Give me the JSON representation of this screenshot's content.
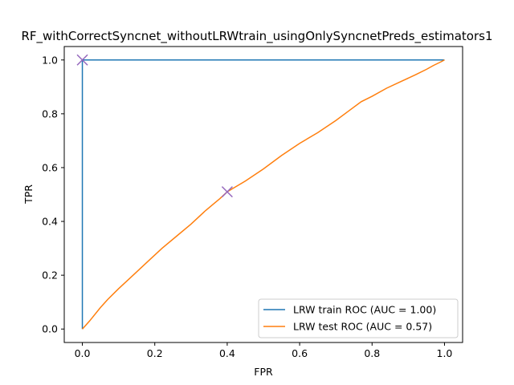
{
  "chart_data": {
    "type": "line",
    "title": "RF_withCorrectSyncnet_withoutLRWtrain_usingOnlySyncnetPreds_estimators1",
    "xlabel": "FPR",
    "ylabel": "TPR",
    "xlim": [
      -0.05,
      1.05
    ],
    "ylim": [
      -0.05,
      1.05
    ],
    "xticks": [
      "0.0",
      "0.2",
      "0.4",
      "0.6",
      "0.8",
      "1.0"
    ],
    "yticks": [
      "0.0",
      "0.2",
      "0.4",
      "0.6",
      "0.8",
      "1.0"
    ],
    "grid": false,
    "legend_position": "lower-right",
    "series": [
      {
        "name": "LRW train ROC (AUC = 1.00)",
        "color": "#1f77b4",
        "x": [
          0.0,
          0.0,
          1.0
        ],
        "y": [
          0.0,
          1.0,
          1.0
        ]
      },
      {
        "name": "LRW test ROC (AUC = 0.57)",
        "color": "#ff7f0e",
        "x": [
          0.0,
          0.02,
          0.05,
          0.07,
          0.1,
          0.14,
          0.18,
          0.22,
          0.26,
          0.3,
          0.34,
          0.38,
          0.4,
          0.45,
          0.5,
          0.55,
          0.6,
          0.65,
          0.7,
          0.74,
          0.77,
          0.8,
          0.84,
          0.88,
          0.92,
          0.95,
          0.97,
          0.99,
          1.0
        ],
        "y": [
          0.0,
          0.03,
          0.08,
          0.11,
          0.15,
          0.2,
          0.25,
          0.3,
          0.345,
          0.39,
          0.44,
          0.485,
          0.51,
          0.55,
          0.595,
          0.645,
          0.69,
          0.73,
          0.775,
          0.815,
          0.845,
          0.865,
          0.895,
          0.92,
          0.945,
          0.965,
          0.98,
          0.993,
          1.0
        ]
      }
    ],
    "markers": [
      {
        "x": 0.0,
        "y": 1.0,
        "color": "#9467bd",
        "symbol": "x"
      },
      {
        "x": 0.4,
        "y": 0.51,
        "color": "#9467bd",
        "symbol": "x"
      }
    ]
  }
}
